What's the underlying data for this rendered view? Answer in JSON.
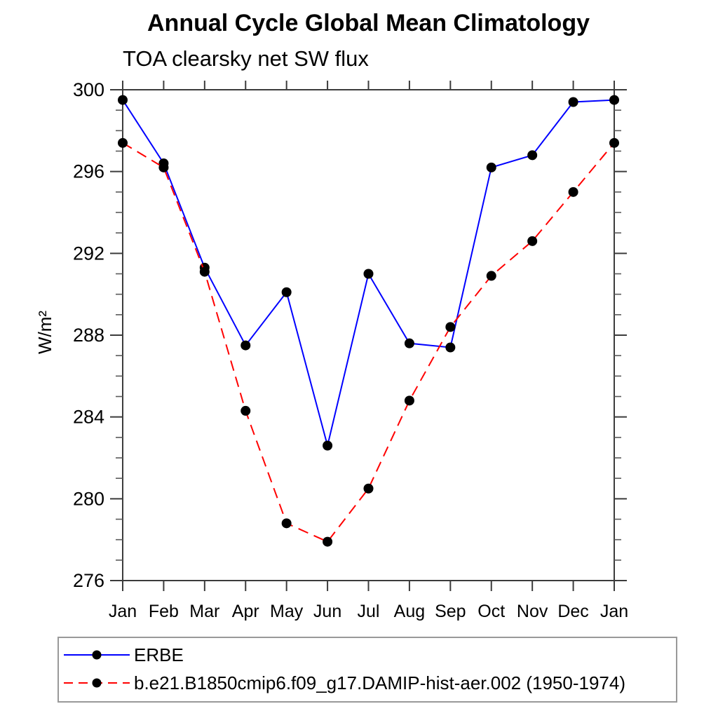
{
  "chart_data": {
    "type": "line",
    "title": "Annual Cycle Global Mean Climatology",
    "subtitle": "TOA clearsky net SW flux",
    "ylabel": "W/m²",
    "xlabel": "",
    "categories": [
      "Jan",
      "Feb",
      "Mar",
      "Apr",
      "May",
      "Jun",
      "Jul",
      "Aug",
      "Sep",
      "Oct",
      "Nov",
      "Dec",
      "Jan"
    ],
    "series": [
      {
        "name": "ERBE",
        "color": "#0000ff",
        "dash": "solid",
        "marker": "black-circle",
        "values": [
          299.5,
          296.4,
          291.3,
          287.5,
          290.1,
          282.6,
          291.0,
          287.6,
          287.4,
          296.2,
          296.8,
          299.4,
          299.5
        ]
      },
      {
        "name": "b.e21.B1850cmip6.f09_g17.DAMIP-hist-aer.002 (1950-1974)",
        "color": "#ff0000",
        "dash": "dashed",
        "marker": "black-circle",
        "values": [
          297.4,
          296.2,
          291.1,
          284.3,
          278.8,
          277.9,
          280.5,
          284.8,
          288.4,
          290.9,
          292.6,
          295.0,
          297.4
        ]
      }
    ],
    "ylim": [
      276,
      300
    ],
    "y_major_ticks": [
      "276",
      "280",
      "284",
      "288",
      "292",
      "296",
      "300"
    ],
    "y_minor_step": 1,
    "grid": false,
    "legend_position": "bottom-left-box",
    "marker_color": "#000000",
    "axis_color": "#3c3c3c"
  }
}
